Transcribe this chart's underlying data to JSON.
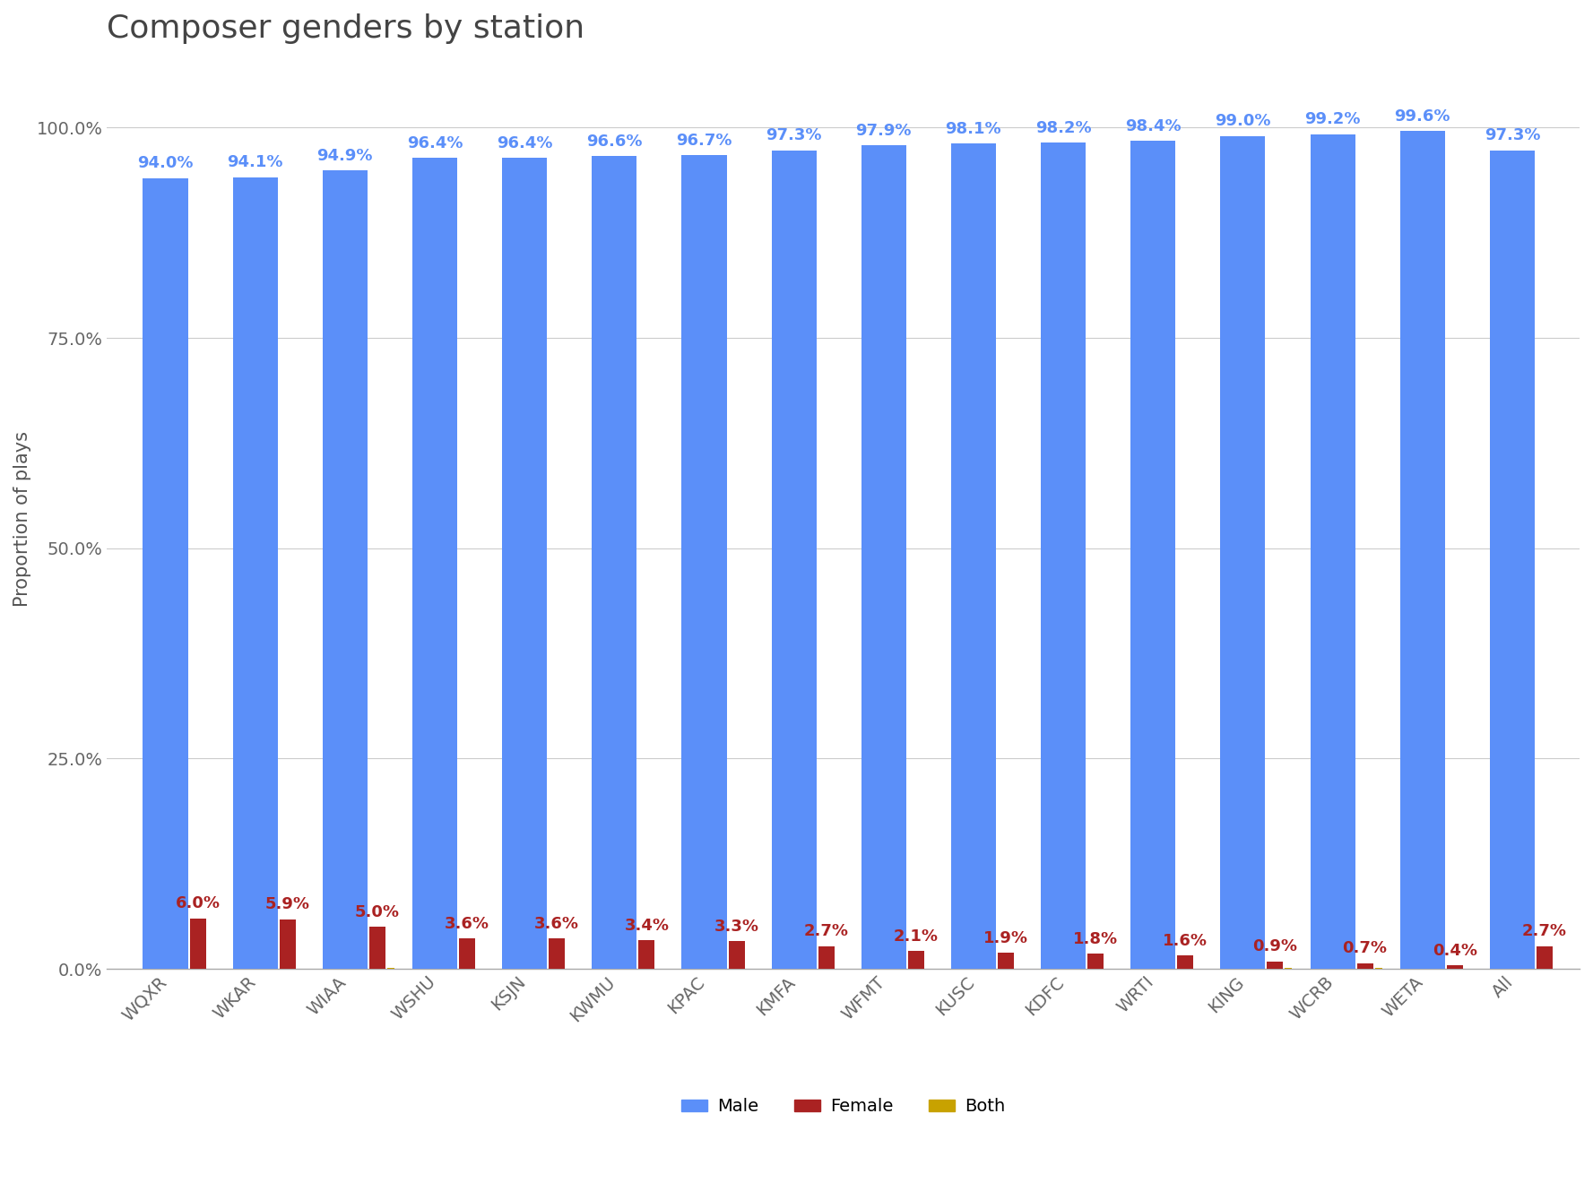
{
  "stations": [
    "WQXR",
    "WKAR",
    "WIAA",
    "WSHU",
    "KSJN",
    "KWMU",
    "KPAC",
    "KMFA",
    "WFMT",
    "KUSC",
    "KDFC",
    "WRTI",
    "KING",
    "WCRB",
    "WETA",
    "All"
  ],
  "male": [
    94.0,
    94.1,
    94.9,
    96.4,
    96.4,
    96.6,
    96.7,
    97.3,
    97.9,
    98.1,
    98.2,
    98.4,
    99.0,
    99.2,
    99.6,
    97.3
  ],
  "female": [
    6.0,
    5.9,
    5.0,
    3.6,
    3.6,
    3.4,
    3.3,
    2.7,
    2.1,
    1.9,
    1.8,
    1.6,
    0.9,
    0.7,
    0.4,
    2.7
  ],
  "both": [
    0.0,
    0.0,
    0.1,
    0.0,
    0.0,
    0.0,
    0.0,
    0.0,
    0.0,
    0.0,
    0.0,
    0.0,
    0.1,
    0.1,
    0.0,
    0.0
  ],
  "male_color": "#5B8FF9",
  "female_color": "#AA2222",
  "both_color": "#C8A200",
  "title": "Composer genders by station",
  "ylabel": "Proportion of plays",
  "title_fontsize": 26,
  "label_fontsize": 15,
  "tick_fontsize": 14,
  "male_annotation_fontsize": 13,
  "female_annotation_fontsize": 13,
  "background_color": "#FFFFFF",
  "male_bar_width": 0.5,
  "female_bar_width": 0.18,
  "both_bar_width": 0.08,
  "ylim": [
    0,
    107
  ],
  "yticks": [
    0,
    25,
    50,
    75,
    100
  ],
  "ytick_labels": [
    "0.0%",
    "25.0%",
    "50.0%",
    "75.0%",
    "100.0%"
  ],
  "grid_color": "#CCCCCC",
  "title_color": "#444444",
  "axis_label_color": "#555555",
  "tick_label_color": "#666666"
}
